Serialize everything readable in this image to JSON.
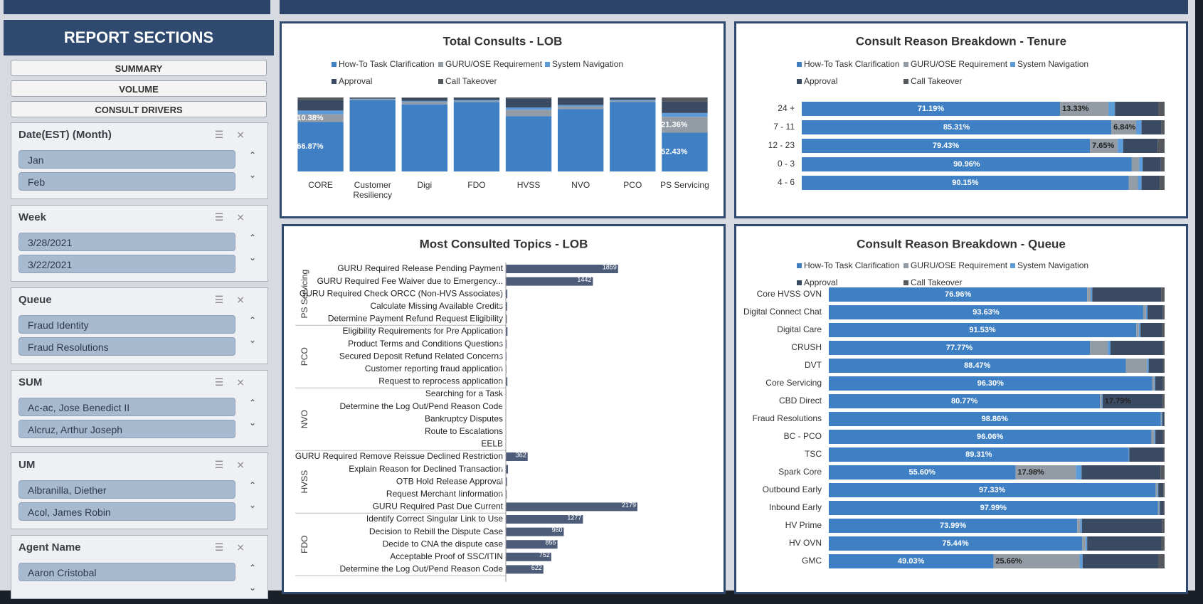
{
  "sidebar": {
    "title": "REPORT SECTIONS",
    "buttons": [
      "SUMMARY",
      "VOLUME",
      "CONSULT DRIVERS"
    ],
    "slicers": [
      {
        "title": "Date(EST) (Month)",
        "items": [
          "Jan",
          "Feb"
        ]
      },
      {
        "title": "Week",
        "items": [
          "3/28/2021",
          "3/22/2021"
        ]
      },
      {
        "title": "Queue",
        "items": [
          "Fraud Identity",
          "Fraud Resolutions"
        ]
      },
      {
        "title": "SUM",
        "items": [
          "Ac-ac, Jose Benedict II",
          "Alcruz, Arthur Joseph"
        ]
      },
      {
        "title": "UM",
        "items": [
          "Albranilla, Diether",
          "Acol, James Robin"
        ]
      },
      {
        "title": "Agent Name",
        "items": [
          "Aaron Cristobal"
        ]
      }
    ]
  },
  "chart_data": [
    {
      "type": "column",
      "title": "Total Consults - LOB",
      "categories": [
        "CORE",
        "Customer Resiliency",
        "Digi",
        "FDO",
        "HVSS",
        "NVO",
        "PCO",
        "PS Servicing"
      ],
      "series": [
        {
          "name": "How-To Task Clarification",
          "color": "#3f7fc4",
          "values": [
            66.87,
            96.48,
            90.66,
            93.87,
            74.82,
            84.44,
            94.1,
            52.43
          ],
          "value_labels": [
            "66.87%",
            null,
            null,
            null,
            null,
            null,
            null,
            "52.43%"
          ]
        },
        {
          "name": "GURU/OSE Requirement",
          "color": "#939ca5",
          "values": [
            10.38,
            1.2,
            3.17,
            1.5,
            8.5,
            3.5,
            1.5,
            21.36
          ],
          "value_labels": [
            "10.38%",
            null,
            null,
            null,
            null,
            null,
            null,
            "21.36%"
          ]
        },
        {
          "name": "System Navigation",
          "color": "#5d9bd8",
          "values": [
            5.12,
            0.8,
            1.5,
            1.2,
            3.1,
            2.0,
            1.2,
            5.2
          ]
        },
        {
          "name": "Approval",
          "color": "#3b4a63",
          "values": [
            13.84,
            1.0,
            4.0,
            2.9,
            12.0,
            9.5,
            2.8,
            15.3
          ]
        },
        {
          "name": "Call Takeover",
          "color": "#55595e",
          "values": [
            3.79,
            0.52,
            0.67,
            0.53,
            1.58,
            0.56,
            0.4,
            5.71
          ]
        }
      ]
    },
    {
      "type": "hstack",
      "title": "Consult Reason Breakdown - Tenure",
      "categories": [
        "24 +",
        "7 - 11",
        "12 - 23",
        "0 - 3",
        "4 - 6"
      ],
      "series": [
        {
          "name": "How-To Task Clarification",
          "color": "#3f7fc4",
          "values": [
            71.19,
            85.31,
            79.43,
            90.96,
            90.15
          ],
          "value_labels": [
            "71.19%",
            "85.31%",
            "79.43%",
            "90.96%",
            "90.15%"
          ]
        },
        {
          "name": "GURU/OSE Requirement",
          "color": "#939ca5",
          "values": [
            13.33,
            6.84,
            7.65,
            2.0,
            2.5
          ],
          "value_labels": [
            "13.33%",
            "6.84%",
            "7.65%",
            null,
            null
          ]
        },
        {
          "name": "System Navigation",
          "color": "#5d9bd8",
          "values": [
            1.8,
            1.5,
            1.5,
            1.0,
            1.0
          ]
        },
        {
          "name": "Approval",
          "color": "#3b4a63",
          "values": [
            12.0,
            5.5,
            9.5,
            5.0,
            5.0
          ]
        },
        {
          "name": "Call Takeover",
          "color": "#55595e",
          "values": [
            1.68,
            0.85,
            1.92,
            1.04,
            1.35
          ]
        }
      ]
    },
    {
      "type": "hbar",
      "title": "Most Consulted Topics - LOB",
      "color": "#4d5c78",
      "groups": [
        {
          "name": "PS Servicing",
          "categories": [
            "GURU Required Release Pending Payment",
            "GURU Required Fee Waiver due to Emergency...",
            "GURU Required Check ORCC (Non-HVS Associates)",
            "Calculate Missing Available Credits",
            "Determine Payment Refund Request Eligibility"
          ],
          "values": [
            1859,
            1442,
            25,
            22,
            17
          ]
        },
        {
          "name": "PCO",
          "categories": [
            "Eligibility Requirements for Pre Application",
            "Product Terms and Conditions Questions",
            "Secured Deposit Refund Related Concerns",
            "Customer reporting fraud application",
            "Request to reprocess application"
          ],
          "values": [
            27,
            14,
            12,
            10,
            25
          ]
        },
        {
          "name": "NVO",
          "categories": [
            "Searching for a Task",
            "Determine the Log Out/Pend Reason Code",
            "Bankruptcy Disputes",
            "Route to Escalations",
            "EELB"
          ],
          "values": [
            8,
            6,
            5,
            4,
            3
          ]
        },
        {
          "name": "HVSS",
          "categories": [
            "GURU Required Remove Reissue Declined Restriction",
            "Explain Reason for Declined Transaction",
            "OTB Hold Release Approval",
            "Request Merchant Iinformation",
            "GURU Required Past Due Current"
          ],
          "values": [
            362,
            36,
            20,
            14,
            2179
          ]
        },
        {
          "name": "FDO",
          "categories": [
            "Identify Correct Singular Link to Use",
            "Decision to Rebill the Dispute Case",
            "Decide to CNA the dispute case",
            "Acceptable Proof of SSC/ITIN",
            "Determine the Log Out/Pend Reason Code"
          ],
          "values": [
            1277,
            960,
            855,
            752,
            622
          ]
        }
      ]
    },
    {
      "type": "hstack",
      "title": "Consult Reason Breakdown - Queue",
      "categories": [
        "Core HVSS OVN",
        "Digital Connect Chat",
        "Digital Care",
        "CRUSH",
        "DVT",
        "Core Servicing",
        "CBD Direct",
        "Fraud Resolutions",
        "BC - PCO",
        "TSC",
        "Spark Core",
        "Outbound Early",
        "Inbound Early",
        "HV Prime",
        "HV OVN",
        "GMC"
      ],
      "series": [
        {
          "name": "How-To Task Clarification",
          "color": "#3f7fc4",
          "values": [
            76.96,
            93.63,
            91.53,
            77.77,
            88.47,
            96.3,
            80.77,
            98.86,
            96.06,
            89.31,
            55.6,
            97.33,
            97.99,
            73.99,
            75.44,
            49.03
          ],
          "value_labels": [
            "76.96%",
            "93.63%",
            "91.53%",
            "77.77%",
            "88.47%",
            "96.30%",
            "80.77%",
            "98.86%",
            "96.06%",
            "89.31%",
            "55.60%",
            "97.33%",
            "97.99%",
            "73.99%",
            "75.44%",
            "49.03%"
          ]
        },
        {
          "name": "GURU/OSE Requirement",
          "color": "#939ca5",
          "values": [
            1.0,
            0.8,
            0.8,
            5.3,
            6.3,
            0.6,
            0.48,
            0.3,
            0.8,
            0.1,
            17.98,
            0.5,
            0.4,
            0.9,
            1.0,
            25.66
          ],
          "value_labels": [
            null,
            null,
            null,
            null,
            null,
            null,
            "0.48%",
            null,
            null,
            null,
            "17.98%",
            null,
            null,
            null,
            null,
            "25.66%"
          ]
        },
        {
          "name": "System Navigation",
          "color": "#5d9bd8",
          "values": [
            0.5,
            0.5,
            0.5,
            0.8,
            0.5,
            0.3,
            0.3,
            0.2,
            0.4,
            0.1,
            1.7,
            0.3,
            0.2,
            0.5,
            0.5,
            0.9
          ]
        },
        {
          "name": "Approval",
          "color": "#3b4a63",
          "values": [
            20.5,
            4.5,
            6.5,
            15.5,
            4.2,
            2.3,
            17.79,
            0.5,
            2.2,
            10.18,
            23.5,
            1.5,
            1.1,
            23.8,
            22.1,
            22.5
          ],
          "value_labels": [
            null,
            null,
            null,
            null,
            null,
            null,
            "17.79%",
            null,
            null,
            null,
            null,
            null,
            null,
            null,
            null,
            null
          ]
        },
        {
          "name": "Call Takeover",
          "color": "#55595e",
          "values": [
            1.04,
            0.57,
            0.67,
            0.63,
            0.53,
            0.5,
            0.66,
            0.14,
            0.54,
            0.31,
            1.22,
            0.37,
            0.31,
            0.81,
            0.96,
            1.91
          ]
        }
      ]
    }
  ]
}
